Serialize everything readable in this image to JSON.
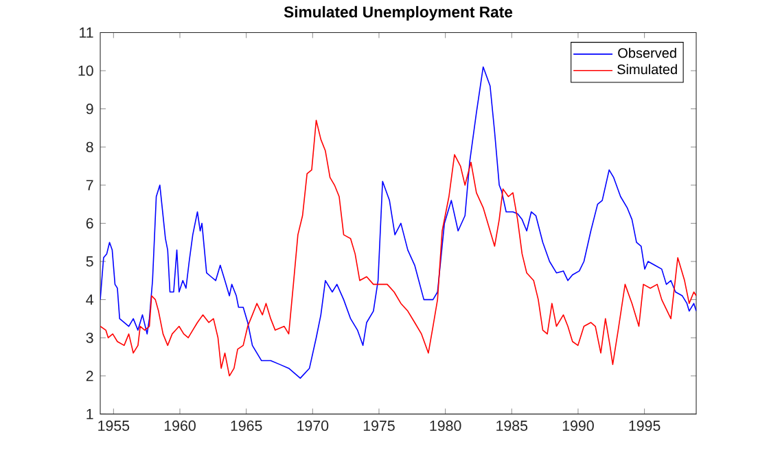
{
  "chart_data": {
    "type": "line",
    "title": "Simulated Unemployment Rate",
    "xlim": [
      1954,
      1998.9
    ],
    "ylim": [
      1,
      11
    ],
    "xticks": [
      1955,
      1960,
      1965,
      1970,
      1975,
      1980,
      1985,
      1990,
      1995
    ],
    "yticks": [
      1,
      2,
      3,
      4,
      5,
      6,
      7,
      8,
      9,
      10,
      11
    ],
    "grid": false,
    "legend": "top right",
    "series": [
      {
        "name": "Observed",
        "color": "#0000ff",
        "x": [
          1954.0,
          1954.25,
          1954.49,
          1954.7,
          1954.9,
          1955.11,
          1955.29,
          1955.46,
          1955.8,
          1956.15,
          1956.49,
          1956.84,
          1957.18,
          1957.53,
          1957.7,
          1957.94,
          1958.22,
          1958.49,
          1958.91,
          1959.08,
          1959.25,
          1959.53,
          1959.77,
          1959.94,
          1960.22,
          1960.46,
          1960.7,
          1960.97,
          1961.32,
          1961.53,
          1961.66,
          1962.01,
          1962.35,
          1962.7,
          1963.04,
          1963.39,
          1963.73,
          1963.91,
          1964.25,
          1964.42,
          1964.77,
          1965.11,
          1965.46,
          1965.8,
          1966.15,
          1966.84,
          1967.53,
          1968.2,
          1969.07,
          1969.76,
          1970.27,
          1970.62,
          1970.96,
          1971.48,
          1971.83,
          1972.34,
          1972.86,
          1973.38,
          1973.79,
          1974.07,
          1974.58,
          1974.93,
          1975.27,
          1975.79,
          1976.2,
          1976.65,
          1977.17,
          1977.69,
          1978.38,
          1979.07,
          1979.41,
          1979.93,
          1980.45,
          1980.96,
          1981.48,
          1981.83,
          1982.34,
          1982.85,
          1983.37,
          1983.71,
          1984.06,
          1984.23,
          1984.58,
          1985.09,
          1985.44,
          1985.78,
          1986.13,
          1986.47,
          1986.82,
          1987.34,
          1987.85,
          1988.37,
          1988.89,
          1989.23,
          1989.58,
          1990.09,
          1990.44,
          1990.96,
          1991.47,
          1991.82,
          1992.34,
          1992.68,
          1993.2,
          1993.71,
          1994.06,
          1994.4,
          1994.75,
          1995.02,
          1995.27,
          1995.78,
          1996.3,
          1996.65,
          1996.99,
          1997.34,
          1997.85,
          1998.2,
          1998.37,
          1998.72,
          1998.9
        ],
        "values": [
          4.0,
          5.1,
          5.2,
          5.5,
          5.3,
          4.4,
          4.3,
          3.5,
          3.4,
          3.3,
          3.5,
          3.2,
          3.6,
          3.1,
          3.5,
          4.5,
          6.7,
          7.0,
          5.6,
          5.3,
          4.2,
          4.2,
          5.3,
          4.2,
          4.5,
          4.3,
          5.0,
          5.7,
          6.3,
          5.8,
          6.0,
          4.7,
          4.6,
          4.5,
          4.9,
          4.5,
          4.1,
          4.4,
          4.1,
          3.8,
          3.8,
          3.4,
          2.8,
          2.6,
          2.4,
          2.4,
          2.3,
          2.2,
          1.94,
          2.2,
          3.0,
          3.6,
          4.5,
          4.2,
          4.4,
          4.0,
          3.5,
          3.2,
          2.8,
          3.4,
          3.7,
          4.5,
          7.1,
          6.6,
          5.7,
          6.0,
          5.3,
          4.9,
          4.0,
          4.0,
          4.2,
          6.0,
          6.6,
          5.8,
          6.2,
          7.6,
          8.9,
          10.1,
          9.6,
          8.4,
          7.0,
          6.85,
          6.3,
          6.3,
          6.25,
          6.1,
          5.8,
          6.3,
          6.2,
          5.5,
          5.0,
          4.7,
          4.75,
          4.5,
          4.65,
          4.75,
          5.0,
          5.8,
          6.5,
          6.6,
          7.4,
          7.2,
          6.7,
          6.4,
          6.1,
          5.5,
          5.4,
          4.8,
          5.0,
          4.9,
          4.8,
          4.4,
          4.5,
          4.2,
          4.1,
          3.9,
          3.7,
          3.9,
          3.7
        ]
      },
      {
        "name": "Simulated",
        "color": "#ff0000",
        "x": [
          1954.0,
          1954.42,
          1954.6,
          1954.94,
          1955.29,
          1955.8,
          1956.15,
          1956.49,
          1956.84,
          1957.01,
          1957.35,
          1957.7,
          1957.87,
          1958.15,
          1958.39,
          1958.73,
          1959.08,
          1959.42,
          1959.94,
          1960.29,
          1960.63,
          1960.97,
          1961.32,
          1961.73,
          1962.18,
          1962.53,
          1962.87,
          1963.11,
          1963.39,
          1963.73,
          1964.08,
          1964.35,
          1964.77,
          1965.11,
          1965.46,
          1965.8,
          1966.22,
          1966.49,
          1966.84,
          1967.18,
          1967.86,
          1968.2,
          1968.55,
          1968.89,
          1969.24,
          1969.58,
          1969.93,
          1970.27,
          1970.62,
          1970.96,
          1971.31,
          1971.65,
          1972.0,
          1972.34,
          1972.86,
          1973.2,
          1973.55,
          1974.07,
          1974.58,
          1975.1,
          1975.62,
          1976.14,
          1976.65,
          1977.17,
          1977.69,
          1978.2,
          1978.72,
          1979.07,
          1979.41,
          1979.76,
          1980.27,
          1980.69,
          1981.14,
          1981.48,
          1981.93,
          1982.34,
          1982.86,
          1983.37,
          1983.71,
          1984.06,
          1984.34,
          1984.75,
          1985.09,
          1985.44,
          1985.78,
          1986.13,
          1986.65,
          1987.0,
          1987.34,
          1987.68,
          1988.03,
          1988.37,
          1988.89,
          1989.23,
          1989.58,
          1989.99,
          1990.44,
          1990.96,
          1991.3,
          1991.71,
          1992.06,
          1992.4,
          1992.61,
          1993.02,
          1993.54,
          1994.06,
          1994.58,
          1994.92,
          1995.44,
          1995.96,
          1996.3,
          1996.99,
          1997.51,
          1998.02,
          1998.37,
          1998.72,
          1998.9
        ],
        "values": [
          3.3,
          3.2,
          3.0,
          3.1,
          2.9,
          2.8,
          3.1,
          2.6,
          2.8,
          3.3,
          3.2,
          3.3,
          4.1,
          4.0,
          3.7,
          3.1,
          2.8,
          3.1,
          3.3,
          3.1,
          3.0,
          3.2,
          3.4,
          3.6,
          3.4,
          3.5,
          3.0,
          2.2,
          2.6,
          2.0,
          2.2,
          2.7,
          2.8,
          3.3,
          3.6,
          3.9,
          3.6,
          3.9,
          3.5,
          3.2,
          3.3,
          3.1,
          4.4,
          5.7,
          6.2,
          7.3,
          7.4,
          8.7,
          8.2,
          7.9,
          7.2,
          7.0,
          6.7,
          5.7,
          5.6,
          5.2,
          4.5,
          4.6,
          4.4,
          4.4,
          4.4,
          4.2,
          3.9,
          3.7,
          3.4,
          3.1,
          2.6,
          3.3,
          4.0,
          5.8,
          6.7,
          7.8,
          7.5,
          7.0,
          7.6,
          6.8,
          6.4,
          5.8,
          5.4,
          6.1,
          6.9,
          6.7,
          6.8,
          6.1,
          5.2,
          4.7,
          4.5,
          4.0,
          3.2,
          3.1,
          3.9,
          3.3,
          3.6,
          3.3,
          2.9,
          2.8,
          3.3,
          3.4,
          3.3,
          2.6,
          3.5,
          2.8,
          2.3,
          3.2,
          4.4,
          3.9,
          3.3,
          4.4,
          4.3,
          4.4,
          4.0,
          3.5,
          5.1,
          4.5,
          3.9,
          4.2,
          4.1
        ]
      }
    ]
  }
}
